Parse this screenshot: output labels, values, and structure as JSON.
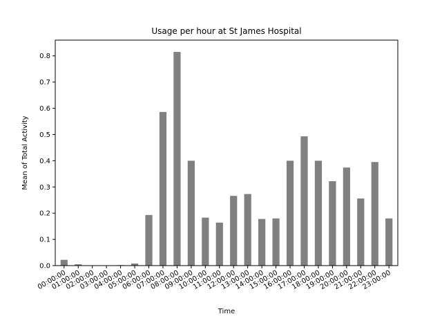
{
  "chart_data": {
    "type": "bar",
    "title": "Usage per hour at  St James Hospital",
    "xlabel": "Time",
    "ylabel": "Mean of Total Activity",
    "categories": [
      "00:00:00",
      "01:00:00",
      "02:00:00",
      "03:00:00",
      "04:00:00",
      "05:00:00",
      "06:00:00",
      "07:00:00",
      "08:00:00",
      "09:00:00",
      "10:00:00",
      "11:00:00",
      "12:00:00",
      "13:00:00",
      "14:00:00",
      "15:00:00",
      "16:00:00",
      "17:00:00",
      "18:00:00",
      "19:00:00",
      "20:00:00",
      "21:00:00",
      "22:00:00",
      "23:00:00"
    ],
    "values": [
      0.022,
      0.005,
      0.0,
      0.0,
      0.002,
      0.008,
      0.193,
      0.586,
      0.815,
      0.4,
      0.183,
      0.164,
      0.266,
      0.273,
      0.178,
      0.18,
      0.4,
      0.493,
      0.4,
      0.322,
      0.374,
      0.256,
      0.395,
      0.18
    ],
    "ylim": [
      0,
      0.86
    ],
    "yticks": [
      0.0,
      0.1,
      0.2,
      0.3,
      0.4,
      0.5,
      0.6,
      0.7,
      0.8
    ],
    "ytick_labels": [
      "0.0",
      "0.1",
      "0.2",
      "0.3",
      "0.4",
      "0.5",
      "0.6",
      "0.7",
      "0.8"
    ],
    "bar_color": "#808080",
    "grid": false,
    "legend": false
  }
}
